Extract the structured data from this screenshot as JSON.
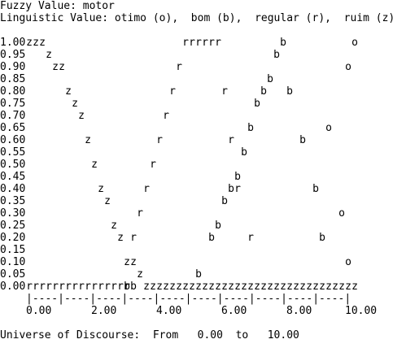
{
  "header": {
    "fuzzy_value": "Fuzzy Value: motor",
    "linguistic_value": "Linguistic Value: otimo (o),  bom (b),  regular (r),  ruim (z)"
  },
  "chart_data": {
    "type": "scatter",
    "title": "",
    "y_tick_labels": [
      "1.00",
      "0.95",
      "0.90",
      "0.85",
      "0.80",
      "0.75",
      "0.70",
      "0.65",
      "0.60",
      "0.55",
      "0.50",
      "0.45",
      "0.40",
      "0.35",
      "0.30",
      "0.25",
      "0.20",
      "0.15",
      "0.10",
      "0.05",
      "0.00"
    ],
    "x_axis_ruler": "|----|----|----|----|----|----|----|----|----|----|",
    "x_tick_labels": [
      "0.00",
      "2.00",
      "4.00",
      "6.00",
      "8.00",
      "10.00"
    ],
    "ylim": [
      0,
      1
    ],
    "xlim": [
      0,
      10
    ],
    "series": [
      {
        "symbol": "z",
        "points": [
          [
            0.0,
            1.0
          ],
          [
            0.2,
            1.0
          ],
          [
            0.4,
            1.0
          ],
          [
            0.6,
            0.95
          ],
          [
            0.8,
            0.9
          ],
          [
            1.0,
            0.9
          ],
          [
            1.2,
            0.8
          ],
          [
            1.4,
            0.75
          ],
          [
            1.6,
            0.7
          ],
          [
            1.8,
            0.6
          ],
          [
            2.0,
            0.5
          ],
          [
            2.2,
            0.4
          ],
          [
            2.4,
            0.35
          ],
          [
            2.6,
            0.25
          ],
          [
            2.8,
            0.2
          ],
          [
            3.0,
            0.1
          ],
          [
            3.2,
            0.1
          ],
          [
            3.4,
            0.05
          ],
          [
            3.6,
            0.0
          ],
          [
            3.8,
            0.0
          ],
          [
            4.0,
            0.0
          ],
          [
            4.2,
            0.0
          ],
          [
            4.4,
            0.0
          ],
          [
            4.6,
            0.0
          ],
          [
            4.8,
            0.0
          ],
          [
            5.0,
            0.0
          ],
          [
            5.2,
            0.0
          ],
          [
            5.4,
            0.0
          ],
          [
            5.6,
            0.0
          ],
          [
            5.8,
            0.0
          ],
          [
            6.0,
            0.0
          ],
          [
            6.2,
            0.0
          ],
          [
            6.4,
            0.0
          ],
          [
            6.6,
            0.0
          ],
          [
            6.8,
            0.0
          ],
          [
            7.0,
            0.0
          ],
          [
            7.2,
            0.0
          ],
          [
            7.4,
            0.0
          ],
          [
            7.6,
            0.0
          ],
          [
            7.8,
            0.0
          ],
          [
            8.0,
            0.0
          ],
          [
            8.2,
            0.0
          ],
          [
            8.4,
            0.0
          ],
          [
            8.6,
            0.0
          ],
          [
            8.8,
            0.0
          ],
          [
            9.0,
            0.0
          ],
          [
            9.2,
            0.0
          ],
          [
            9.4,
            0.0
          ],
          [
            9.6,
            0.0
          ],
          [
            9.8,
            0.0
          ],
          [
            10.0,
            0.0
          ]
        ]
      },
      {
        "symbol": "r",
        "points": [
          [
            0.0,
            0.0
          ],
          [
            0.2,
            0.0
          ],
          [
            0.4,
            0.0
          ],
          [
            0.6,
            0.0
          ],
          [
            0.8,
            0.0
          ],
          [
            1.0,
            0.0
          ],
          [
            1.2,
            0.0
          ],
          [
            1.4,
            0.0
          ],
          [
            1.6,
            0.0
          ],
          [
            1.8,
            0.0
          ],
          [
            2.0,
            0.0
          ],
          [
            2.2,
            0.0
          ],
          [
            2.4,
            0.0
          ],
          [
            2.6,
            0.0
          ],
          [
            2.8,
            0.0
          ],
          [
            3.0,
            0.0
          ],
          [
            3.2,
            0.2
          ],
          [
            3.4,
            0.3
          ],
          [
            3.6,
            0.4
          ],
          [
            3.8,
            0.5
          ],
          [
            4.0,
            0.6
          ],
          [
            4.2,
            0.7
          ],
          [
            4.4,
            0.8
          ],
          [
            4.6,
            0.9
          ],
          [
            4.8,
            1.0
          ],
          [
            5.0,
            1.0
          ],
          [
            5.2,
            1.0
          ],
          [
            5.4,
            1.0
          ],
          [
            5.6,
            1.0
          ],
          [
            5.8,
            1.0
          ],
          [
            6.0,
            0.8
          ],
          [
            6.2,
            0.6
          ],
          [
            6.4,
            0.4
          ],
          [
            6.8,
            0.2
          ]
        ]
      },
      {
        "symbol": "b",
        "points": [
          [
            3.0,
            0.0
          ],
          [
            3.2,
            0.0
          ],
          [
            5.2,
            0.05
          ],
          [
            5.6,
            0.2
          ],
          [
            5.8,
            0.25
          ],
          [
            6.0,
            0.35
          ],
          [
            6.2,
            0.4
          ],
          [
            6.4,
            0.45
          ],
          [
            6.6,
            0.55
          ],
          [
            6.8,
            0.65
          ],
          [
            7.0,
            0.75
          ],
          [
            7.2,
            0.8
          ],
          [
            7.4,
            0.85
          ],
          [
            7.6,
            0.95
          ],
          [
            7.8,
            1.0
          ],
          [
            8.0,
            0.8
          ],
          [
            8.4,
            0.6
          ],
          [
            8.8,
            0.4
          ],
          [
            9.0,
            0.2
          ]
        ]
      },
      {
        "symbol": "o",
        "points": [
          [
            9.2,
            0.65
          ],
          [
            9.6,
            0.3
          ],
          [
            9.8,
            0.1
          ],
          [
            9.8,
            0.9
          ],
          [
            10.0,
            1.0
          ]
        ]
      }
    ]
  },
  "footer": {
    "universe_label": "Universe of Discourse:  From   0.00  to   10.00"
  }
}
